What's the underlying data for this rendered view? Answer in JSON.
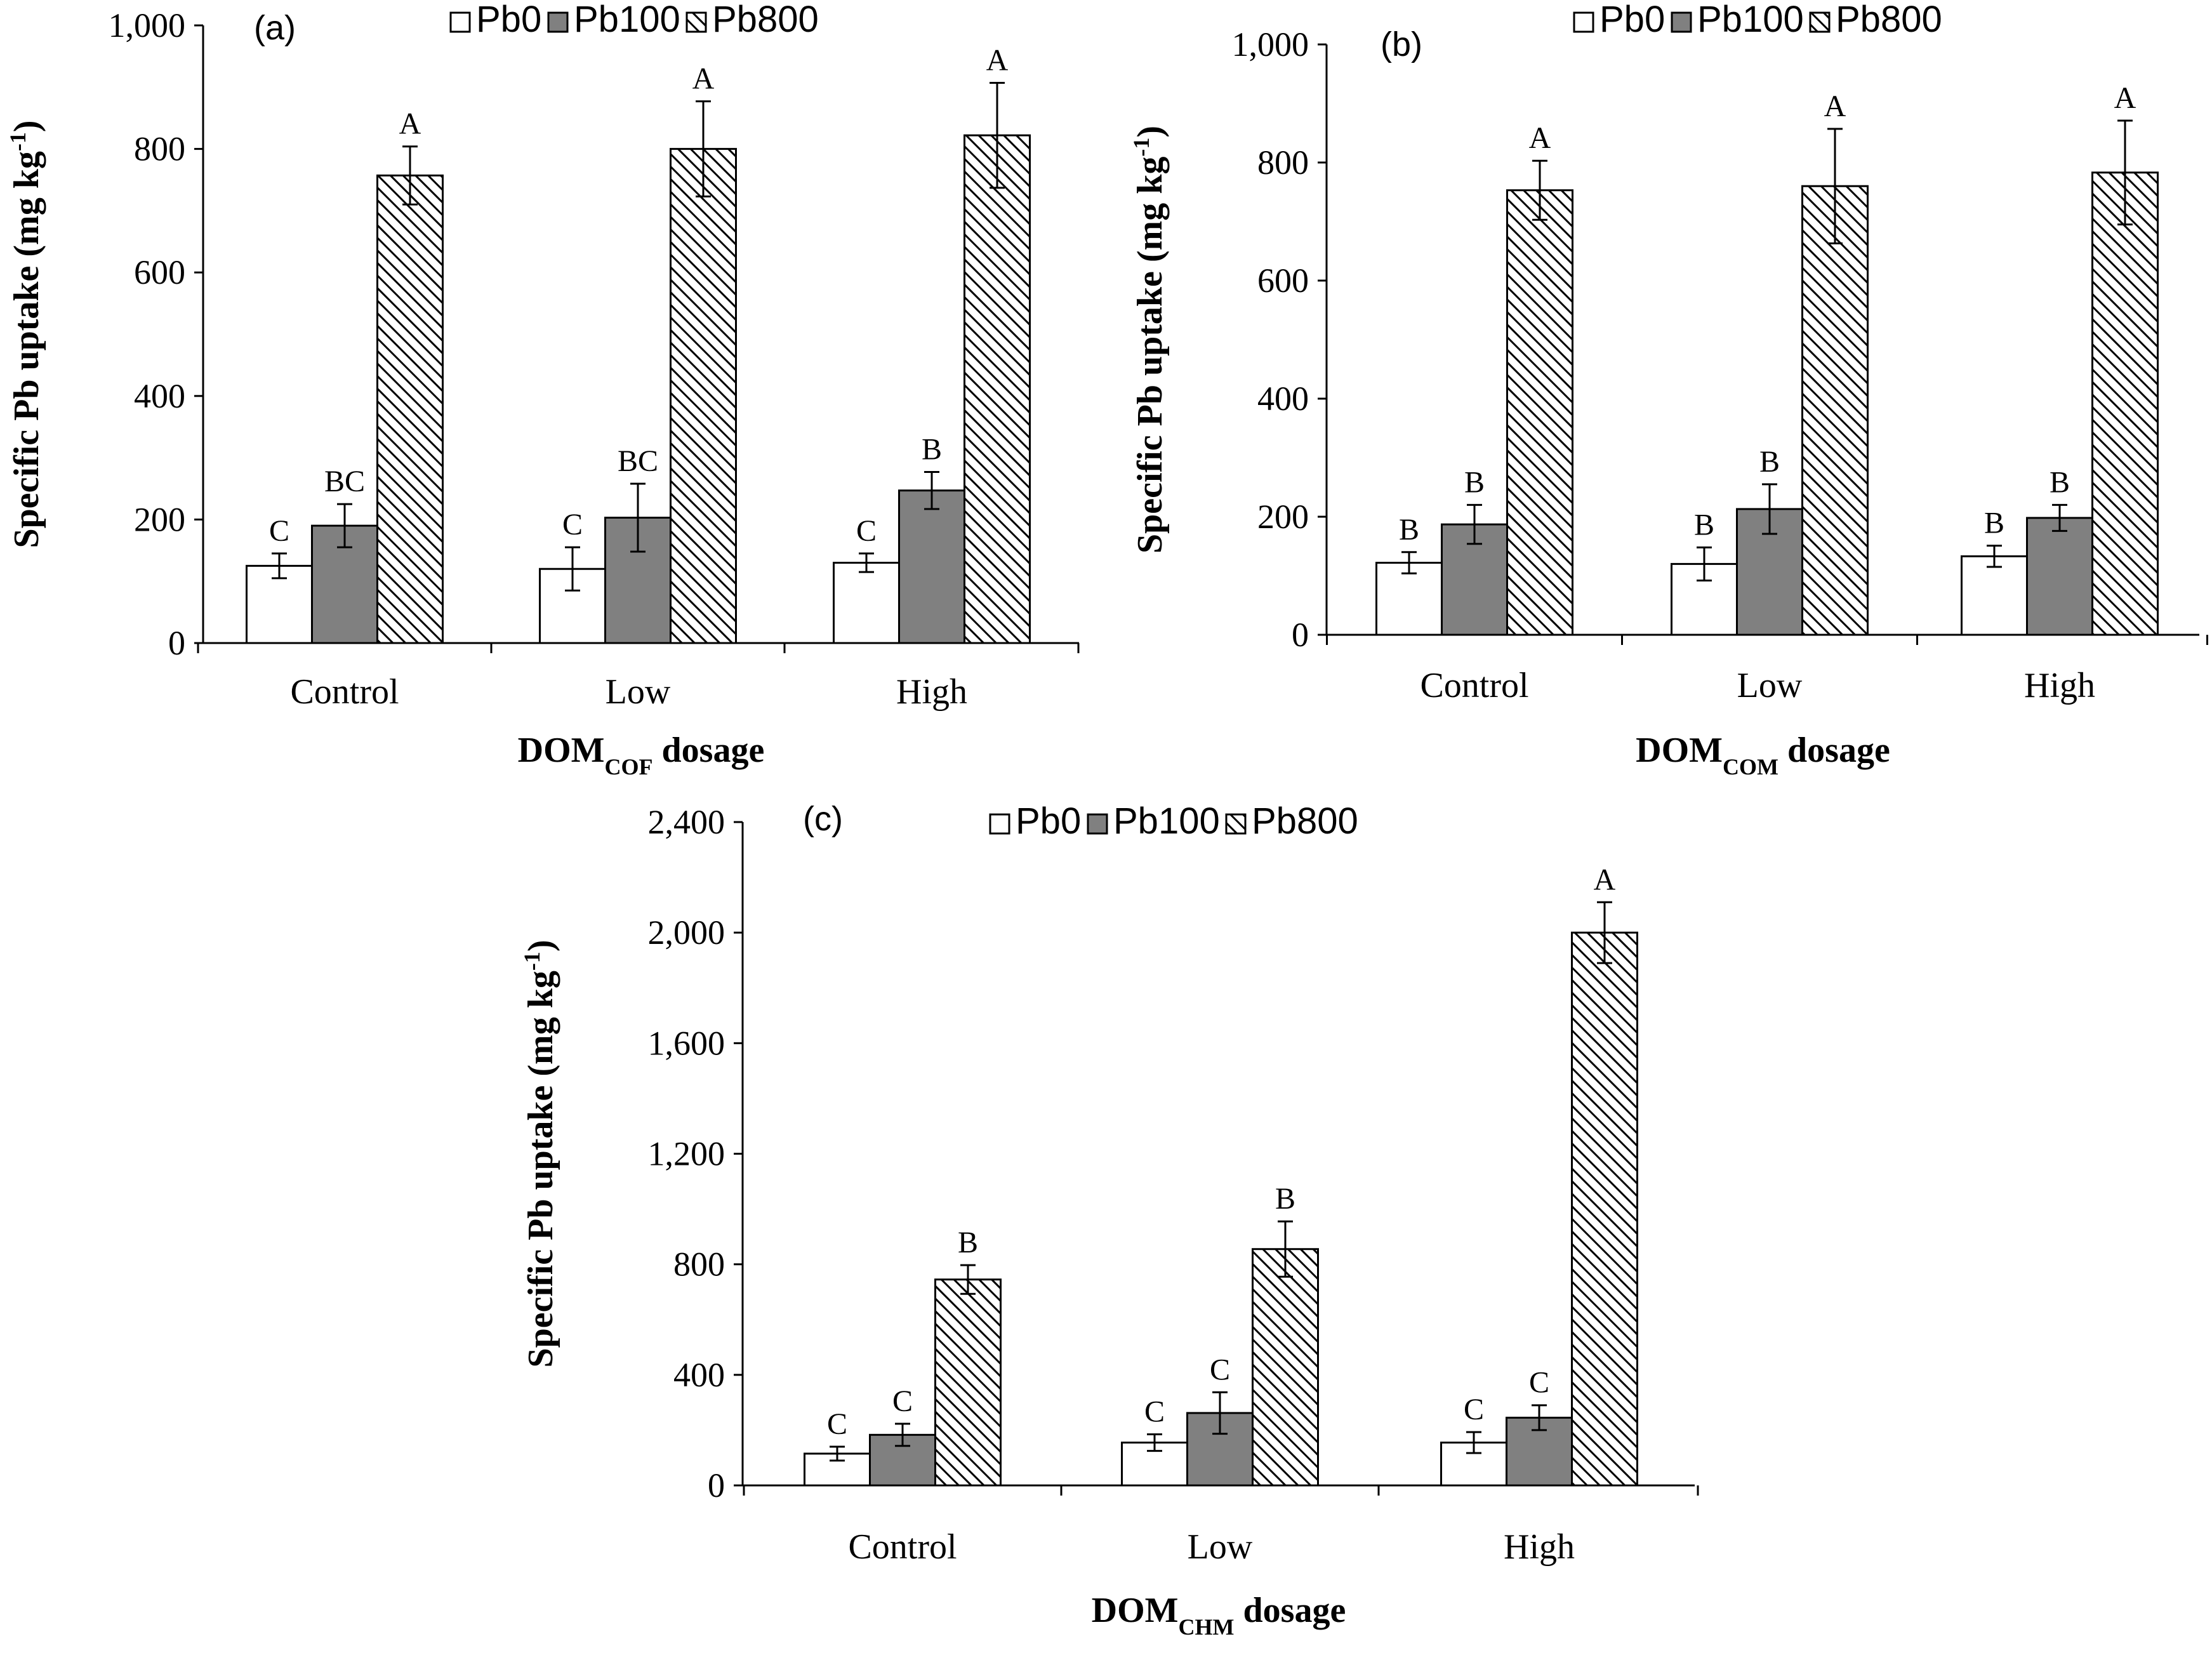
{
  "legend": [
    "Pb0",
    "Pb100",
    "Pb800"
  ],
  "colors": {
    "pb0": "#ffffff",
    "pb100": "#808080",
    "pb800": "hatch",
    "stroke": "#000000"
  },
  "chart_data": [
    {
      "id": "a",
      "type": "bar",
      "panel_label": "(a)",
      "categories": [
        "Control",
        "Low",
        "High"
      ],
      "series": [
        {
          "name": "Pb0",
          "values": [
            125,
            120,
            130
          ],
          "errors": [
            20,
            35,
            15
          ],
          "letters": [
            "C",
            "C",
            "C"
          ]
        },
        {
          "name": "Pb100",
          "values": [
            190,
            203,
            247
          ],
          "errors": [
            35,
            55,
            30
          ],
          "letters": [
            "BC",
            "BC",
            "B"
          ]
        },
        {
          "name": "Pb800",
          "values": [
            757,
            800,
            822
          ],
          "errors": [
            47,
            77,
            85
          ],
          "letters": [
            "A",
            "A",
            "A"
          ]
        }
      ],
      "ylim": [
        0,
        1000
      ],
      "yticks": [
        0,
        200,
        400,
        600,
        800,
        1000
      ],
      "ytick_labels": [
        "0",
        "200",
        "400",
        "600",
        "800",
        "1,000"
      ],
      "ylabel": "Specific  Pb uptake (mg kg",
      "ylabel_sup": "-1",
      "ylabel_end": ")",
      "xlabel_main": "DOM",
      "xlabel_sub": "COF",
      "xlabel_end": " dosage"
    },
    {
      "id": "b",
      "type": "bar",
      "panel_label": "(b)",
      "categories": [
        "Control",
        "Low",
        "High"
      ],
      "series": [
        {
          "name": "Pb0",
          "values": [
            122,
            120,
            133
          ],
          "errors": [
            18,
            28,
            18
          ],
          "letters": [
            "B",
            "B",
            "B"
          ]
        },
        {
          "name": "Pb100",
          "values": [
            187,
            213,
            198
          ],
          "errors": [
            33,
            42,
            22
          ],
          "letters": [
            "B",
            "B",
            "B"
          ]
        },
        {
          "name": "Pb800",
          "values": [
            753,
            760,
            783
          ],
          "errors": [
            50,
            97,
            88
          ],
          "letters": [
            "A",
            "A",
            "A"
          ]
        }
      ],
      "ylim": [
        0,
        1000
      ],
      "yticks": [
        0,
        200,
        400,
        600,
        800,
        1000
      ],
      "ytick_labels": [
        "0",
        "200",
        "400",
        "600",
        "800",
        "1,000"
      ],
      "ylabel": "Specific  Pb uptake (mg kg",
      "ylabel_sup": "-1",
      "ylabel_end": ")",
      "xlabel_main": "DOM",
      "xlabel_sub": "COM",
      "xlabel_end": "  dosage"
    },
    {
      "id": "c",
      "type": "bar",
      "panel_label": "(c)",
      "categories": [
        "Control",
        "Low",
        "High"
      ],
      "series": [
        {
          "name": "Pb0",
          "values": [
            115,
            155,
            155
          ],
          "errors": [
            25,
            30,
            38
          ],
          "letters": [
            "C",
            "C",
            "C"
          ]
        },
        {
          "name": "Pb100",
          "values": [
            183,
            262,
            245
          ],
          "errors": [
            40,
            75,
            45
          ],
          "letters": [
            "C",
            "C",
            "C"
          ]
        },
        {
          "name": "Pb800",
          "values": [
            745,
            855,
            2000
          ],
          "errors": [
            52,
            100,
            110
          ],
          "letters": [
            "B",
            "B",
            "A"
          ]
        }
      ],
      "ylim": [
        0,
        2400
      ],
      "yticks": [
        0,
        400,
        800,
        1200,
        1600,
        2000,
        2400
      ],
      "ytick_labels": [
        "0",
        "400",
        "800",
        "1,200",
        "1,600",
        "2,000",
        "2,400"
      ],
      "ylabel": "Specific  Pb uptake (mg kg",
      "ylabel_sup": "-1",
      "ylabel_end": ")",
      "xlabel_main": "DOM",
      "xlabel_sub": "CHM",
      "xlabel_end": "  dosage"
    }
  ]
}
